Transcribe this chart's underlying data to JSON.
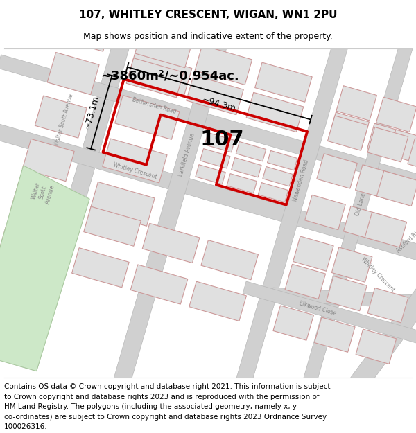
{
  "title": "107, WHITLEY CRESCENT, WIGAN, WN1 2PU",
  "subtitle": "Map shows position and indicative extent of the property.",
  "footer_lines": [
    "Contains OS data © Crown copyright and database right 2021. This information is subject",
    "to Crown copyright and database rights 2023 and is reproduced with the permission of",
    "HM Land Registry. The polygons (including the associated geometry, namely x, y",
    "co-ordinates) are subject to Crown copyright and database rights 2023 Ordnance Survey",
    "100026316."
  ],
  "area_text": "~3860m²/~0.954ac.",
  "label_107": "107",
  "dim_horizontal": "~94.3m",
  "dim_vertical": "~73.1m",
  "map_bg": "#f0f0f0",
  "property_stroke": "#cc0000",
  "road_fill": "#d0d0d0",
  "building_fill": "#e0e0e0",
  "building_stroke": "#cc9999",
  "green_fill": "#cde8c8",
  "green_stroke": "#aac8a0",
  "title_fontsize": 11,
  "subtitle_fontsize": 9,
  "footer_fontsize": 7.5,
  "road_label_fontsize": 5.5,
  "road_label_color": "#888888"
}
